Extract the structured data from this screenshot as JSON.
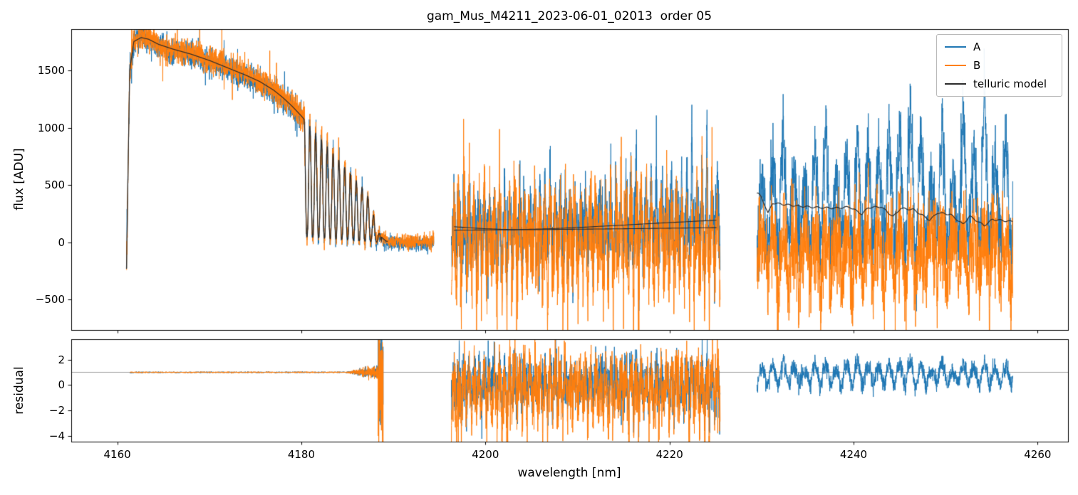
{
  "chart_data": {
    "type": "line",
    "title": "gam_Mus_M4211_2023-06-01_02013  order 05",
    "xlabel": "wavelength [nm]",
    "xlim": [
      4155.0,
      4263.3
    ],
    "xticks": [
      4160,
      4180,
      4200,
      4220,
      4240,
      4260
    ],
    "grid": false,
    "legend": {
      "position": "upper right",
      "entries": [
        {
          "label": "A",
          "color": "#1f77b4"
        },
        {
          "label": "B",
          "color": "#ff7f0e"
        },
        {
          "label": "telluric model",
          "color": "#2b2b2b"
        }
      ]
    },
    "flux_panel": {
      "ylabel": "flux [ADU]",
      "ylim": [
        -764,
        1863
      ],
      "yticks": [
        -500,
        0,
        500,
        1000,
        1500
      ]
    },
    "residual_panel": {
      "ylabel": "residual",
      "ylim": [
        -4.45,
        3.6
      ],
      "yticks": [
        -4,
        -2,
        0,
        2
      ],
      "reference_line": 1.0
    },
    "segments": [
      {
        "name": "order-left",
        "x_range": [
          4161.0,
          4194.4
        ],
        "continuum_anchors": [
          [
            4161.0,
            -230
          ],
          [
            4161.35,
            1500
          ],
          [
            4161.8,
            1755
          ],
          [
            4162.6,
            1790
          ],
          [
            4163.4,
            1775
          ],
          [
            4164.5,
            1730
          ],
          [
            4166.0,
            1690
          ],
          [
            4168.0,
            1645
          ],
          [
            4170.0,
            1590
          ],
          [
            4172.0,
            1525
          ],
          [
            4174.0,
            1460
          ],
          [
            4175.5,
            1405
          ],
          [
            4177.0,
            1330
          ],
          [
            4178.0,
            1265
          ],
          [
            4179.0,
            1190
          ],
          [
            4180.0,
            1105
          ],
          [
            4181.0,
            1010
          ],
          [
            4182.0,
            915
          ],
          [
            4183.0,
            820
          ],
          [
            4184.0,
            725
          ],
          [
            4185.0,
            630
          ],
          [
            4186.0,
            540
          ],
          [
            4187.0,
            450
          ],
          [
            4187.6,
            330
          ],
          [
            4188.1,
            150
          ],
          [
            4188.6,
            55
          ],
          [
            4189.2,
            12
          ],
          [
            4190.0,
            4
          ],
          [
            4194.4,
            2
          ]
        ],
        "telluric_band": {
          "x_start": 4180.3,
          "x_end": 4188.7,
          "period": 0.63,
          "floor": 50
        },
        "noise_sigma": 55,
        "model_x_end": 4189.4,
        "residual": {
          "x_range": [
            4161.4,
            4188.9
          ],
          "level": 1.0,
          "noise": 0.022,
          "spike_x_start": 4188.35
        }
      },
      {
        "name": "order-middle",
        "x_range": [
          4196.3,
          4225.5
        ],
        "baseline_A": 105,
        "baseline_B": 45,
        "noise_sigma_A": 165,
        "noise_sigma_B": 200,
        "spike_period": 0.55,
        "spike_amp_A": [
          180,
          620
        ],
        "spike_amp_B_down": 520,
        "model_anchors_upper": [
          [
            4196.6,
            138
          ],
          [
            4200.0,
            120
          ],
          [
            4203.0,
            112
          ],
          [
            4207.0,
            120
          ],
          [
            4211.0,
            135
          ],
          [
            4215.0,
            152
          ],
          [
            4219.0,
            170
          ],
          [
            4222.0,
            182
          ],
          [
            4225.3,
            196
          ]
        ],
        "model_anchors_lower": [
          [
            4196.6,
            108
          ],
          [
            4205.0,
            112
          ],
          [
            4215.0,
            120
          ],
          [
            4225.3,
            130
          ]
        ],
        "residual": {
          "mean_A": 0.25,
          "sigma_A": 1.0,
          "mean_B": -0.1,
          "sigma_B": 1.25
        }
      },
      {
        "name": "order-right",
        "x_range": [
          4229.5,
          4257.3
        ],
        "baseline_A": 130,
        "baseline_B": -60,
        "noise_sigma_A": 150,
        "noise_sigma_B": 190,
        "spike_period": 1.15,
        "spike_amp_A": [
          650,
          1050
        ],
        "spike_amp_B_down": 380,
        "model_anchors": [
          [
            4229.6,
            430
          ],
          [
            4230.0,
            395
          ],
          [
            4230.7,
            255
          ],
          [
            4231.2,
            345
          ],
          [
            4232.5,
            332
          ],
          [
            4234.0,
            318
          ],
          [
            4236.0,
            306
          ],
          [
            4238.0,
            300
          ],
          [
            4239.6,
            310
          ],
          [
            4240.9,
            248
          ],
          [
            4241.6,
            305
          ],
          [
            4243.0,
            312
          ],
          [
            4244.3,
            225
          ],
          [
            4245.1,
            298
          ],
          [
            4246.5,
            288
          ],
          [
            4248.3,
            195
          ],
          [
            4249.1,
            260
          ],
          [
            4250.5,
            246
          ],
          [
            4251.9,
            158
          ],
          [
            4252.6,
            230
          ],
          [
            4254.2,
            148
          ],
          [
            4255.1,
            202
          ],
          [
            4256.4,
            190
          ],
          [
            4257.2,
            183
          ]
        ],
        "residual": {
          "mean_A": 0.55,
          "sigma_A": 0.33,
          "bump_amp": 1.15
        }
      }
    ]
  }
}
